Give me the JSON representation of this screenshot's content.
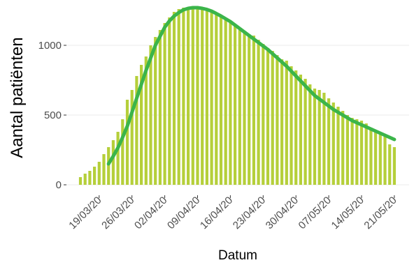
{
  "chart_data": {
    "type": "bar",
    "y_label": "Aantal patiënten",
    "x_label": "Datum",
    "categories": [
      null,
      null,
      null,
      null,
      "19/03/20",
      null,
      null,
      null,
      null,
      null,
      null,
      "26/03/20",
      null,
      null,
      null,
      null,
      null,
      null,
      "02/04/20",
      null,
      null,
      null,
      null,
      null,
      null,
      "09/04/20",
      null,
      null,
      null,
      null,
      null,
      null,
      "16/04/20",
      null,
      null,
      null,
      null,
      null,
      null,
      "23/04/20",
      null,
      null,
      null,
      null,
      null,
      null,
      "30/04/20",
      null,
      null,
      null,
      null,
      null,
      null,
      "07/05/20",
      null,
      null,
      null,
      null,
      null,
      null,
      "14/05/20",
      null,
      null,
      null,
      null,
      null,
      null,
      "21/05/20"
    ],
    "values": [
      55,
      80,
      100,
      130,
      165,
      220,
      270,
      320,
      380,
      470,
      610,
      680,
      780,
      860,
      920,
      1000,
      1060,
      1110,
      1160,
      1200,
      1240,
      1260,
      1270,
      1270,
      1265,
      1275,
      1260,
      1250,
      1240,
      1220,
      1200,
      1180,
      1160,
      1140,
      1110,
      1090,
      1080,
      1070,
      1040,
      1010,
      980,
      960,
      930,
      900,
      890,
      850,
      820,
      790,
      760,
      720,
      690,
      680,
      660,
      620,
      590,
      560,
      530,
      500,
      480,
      470,
      460,
      440,
      410,
      380,
      360,
      345,
      290,
      270
    ],
    "color": "#b5cf3a",
    "line": {
      "color": "#3bb54a",
      "values": [
        null,
        null,
        null,
        null,
        null,
        null,
        150,
        205,
        265,
        340,
        420,
        520,
        620,
        720,
        820,
        910,
        1000,
        1065,
        1130,
        1175,
        1210,
        1235,
        1255,
        1265,
        1270,
        1270,
        1265,
        1257,
        1245,
        1228,
        1210,
        1190,
        1170,
        1145,
        1120,
        1095,
        1070,
        1045,
        1020,
        995,
        970,
        940,
        910,
        880,
        850,
        815,
        780,
        745,
        710,
        675,
        640,
        615,
        590,
        565,
        540,
        520,
        500,
        480,
        460,
        445,
        430,
        415,
        400,
        385,
        370,
        355,
        340,
        325
      ]
    },
    "ylim": [
      -75,
      1325
    ],
    "yticks": [
      0,
      500,
      1000
    ],
    "grid": true
  }
}
